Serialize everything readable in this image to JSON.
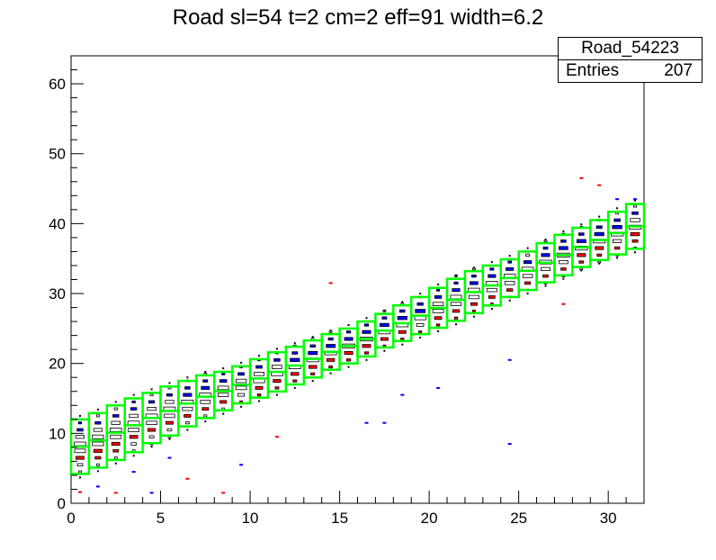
{
  "chart_data": {
    "type": "heatmap",
    "title": "Road sl=54 t=2 cm=2 eff=91 width=6.2",
    "xlabel": "",
    "ylabel": "",
    "xlim": [
      0,
      32
    ],
    "ylim": [
      0,
      64
    ],
    "x_ticks": [
      0,
      5,
      10,
      15,
      20,
      25,
      30
    ],
    "y_ticks": [
      0,
      10,
      20,
      30,
      40,
      50,
      60
    ],
    "stats": {
      "name": "Road_54223",
      "entries_label": "Entries",
      "entries": 207
    },
    "road": {
      "color": "#00ff00",
      "columns_x": [
        0,
        1,
        2,
        3,
        4,
        5,
        6,
        7,
        8,
        9,
        10,
        11,
        12,
        13,
        14,
        15,
        16,
        17,
        18,
        19,
        20,
        21,
        22,
        23,
        24,
        25,
        26,
        27,
        28,
        29,
        30,
        31
      ],
      "lower_y": [
        4.2,
        5.1,
        6.2,
        7.3,
        8.6,
        9.7,
        11.0,
        12.2,
        13.3,
        14.3,
        15.1,
        16.0,
        17.0,
        18.0,
        19.1,
        20.0,
        21.0,
        22.3,
        23.2,
        24.2,
        25.1,
        26.1,
        27.2,
        28.3,
        29.5,
        30.5,
        31.6,
        32.6,
        33.8,
        34.8,
        35.6,
        36.4
      ],
      "upper_y": [
        12.0,
        12.9,
        14.0,
        15.0,
        15.8,
        16.7,
        17.5,
        18.3,
        18.8,
        19.6,
        20.6,
        21.6,
        22.4,
        23.3,
        24.2,
        25.0,
        26.0,
        27.1,
        28.3,
        29.5,
        30.8,
        32.1,
        33.2,
        34.0,
        34.9,
        36.0,
        37.2,
        38.4,
        39.4,
        40.5,
        41.7,
        42.8
      ]
    },
    "blue_y": [
      10.8,
      11.6,
      12.6,
      13.8,
      14.6,
      15.4,
      16.3,
      17.0,
      17.8,
      18.7,
      19.6,
      20.6,
      21.3,
      22.1,
      23.0,
      24.0,
      25.0,
      26.0,
      27.3,
      28.2,
      29.6,
      30.6,
      32.4,
      32.8,
      33.6,
      34.5,
      35.8,
      37.2,
      38.0,
      39.4,
      40.4,
      41.5
    ],
    "red_y": [
      6.5,
      7.2,
      8.2,
      9.6,
      10.6,
      11.4,
      12.6,
      13.6,
      14.4,
      14.6,
      15.8,
      16.6,
      17.8,
      18.6,
      20.0,
      20.6,
      21.6,
      22.6,
      23.8,
      24.4,
      25.8,
      27.0,
      27.8,
      28.8,
      30.0,
      31.4,
      32.4,
      33.2,
      34.6,
      35.6,
      36.4,
      37.8
    ],
    "outliers": [
      {
        "x": 0.5,
        "y": 1.6,
        "c": "#ff0000"
      },
      {
        "x": 1.5,
        "y": 2.4,
        "c": "#0000ff"
      },
      {
        "x": 2.5,
        "y": 1.5,
        "c": "#ff0000"
      },
      {
        "x": 3.5,
        "y": 4.5,
        "c": "#0000ff"
      },
      {
        "x": 4.5,
        "y": 1.5,
        "c": "#0000ff"
      },
      {
        "x": 5.5,
        "y": 6.5,
        "c": "#0000ff"
      },
      {
        "x": 6.5,
        "y": 3.5,
        "c": "#ff0000"
      },
      {
        "x": 8.5,
        "y": 1.5,
        "c": "#ff0000"
      },
      {
        "x": 9.5,
        "y": 5.5,
        "c": "#0000ff"
      },
      {
        "x": 11.5,
        "y": 9.5,
        "c": "#ff0000"
      },
      {
        "x": 14.5,
        "y": 31.5,
        "c": "#ff0000"
      },
      {
        "x": 16.5,
        "y": 11.5,
        "c": "#0000ff"
      },
      {
        "x": 17.5,
        "y": 11.5,
        "c": "#0000ff"
      },
      {
        "x": 18.5,
        "y": 15.5,
        "c": "#0000ff"
      },
      {
        "x": 20.5,
        "y": 16.5,
        "c": "#0000ff"
      },
      {
        "x": 24.5,
        "y": 8.5,
        "c": "#0000ff"
      },
      {
        "x": 24.5,
        "y": 20.5,
        "c": "#0000ff"
      },
      {
        "x": 27.5,
        "y": 28.5,
        "c": "#ff0000"
      },
      {
        "x": 28.5,
        "y": 46.5,
        "c": "#ff0000"
      },
      {
        "x": 29.5,
        "y": 45.5,
        "c": "#ff0000"
      },
      {
        "x": 30.5,
        "y": 43.5,
        "c": "#0000ff"
      },
      {
        "x": 31.5,
        "y": 43.5,
        "c": "#0000ff"
      }
    ]
  }
}
